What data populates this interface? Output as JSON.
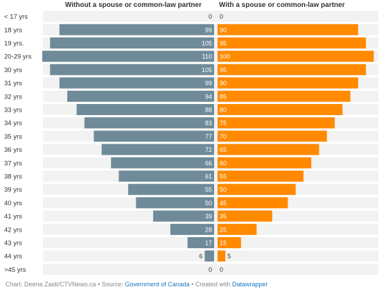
{
  "chart_data": {
    "type": "bar",
    "orientation": "horizontal-diverging",
    "categories": [
      "< 17 yrs",
      "18 yrs",
      "19 yrs.",
      "20-29 yrs",
      "30 yrs",
      "31 yrs",
      "32 yrs",
      "33 yrs",
      "34 yrs",
      "35 yrs",
      "36 yrs",
      "37 yrs",
      "38 yrs",
      "39 yrs",
      "40 yrs",
      "41 yrs",
      "42 yrs",
      "43 yrs",
      "44 yrs",
      ">45 yrs"
    ],
    "series": [
      {
        "name": "Without a spouse or common-law partner",
        "color": "#6f8b99",
        "values": [
          0,
          99,
          105,
          110,
          105,
          99,
          94,
          88,
          83,
          77,
          72,
          66,
          61,
          55,
          50,
          39,
          28,
          17,
          6,
          0
        ]
      },
      {
        "name": "With a spouse or common-law partner",
        "color": "#ff8a00",
        "values": [
          0,
          90,
          95,
          100,
          95,
          90,
          85,
          80,
          75,
          70,
          65,
          60,
          55,
          50,
          45,
          35,
          25,
          15,
          5,
          0
        ]
      }
    ],
    "xlim": [
      0,
      110
    ],
    "grid": false,
    "legend": "top"
  },
  "footer": {
    "prefix": "Chart: Deena Zaidi/CTVNews.ca • Source: ",
    "source_link": "Government of Canada",
    "middle": " • Created with ",
    "tool_link": "Datawrapper"
  }
}
